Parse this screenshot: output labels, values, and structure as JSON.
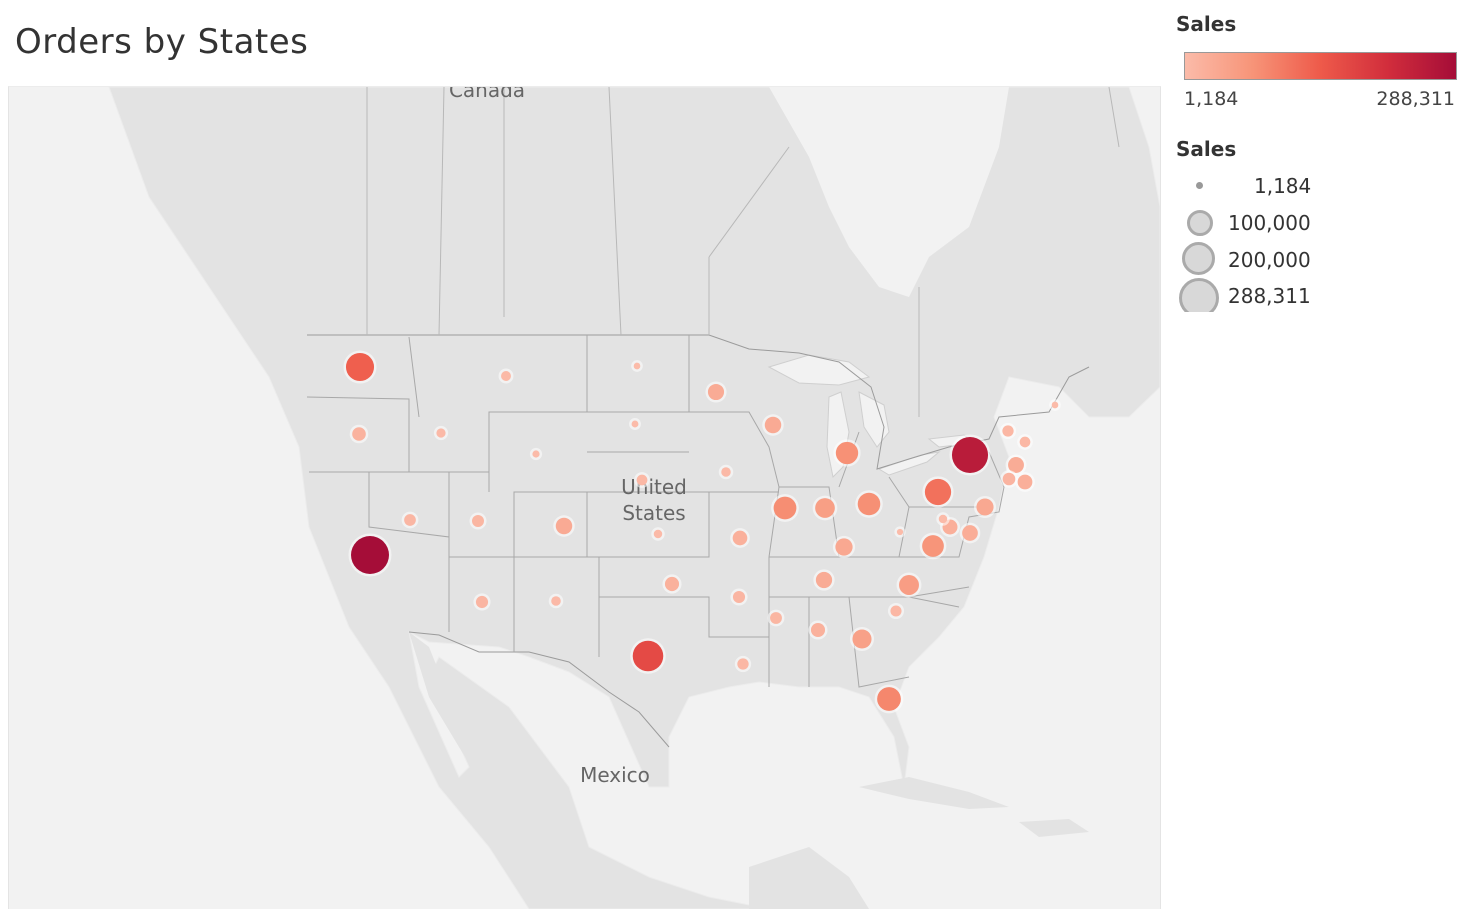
{
  "title": "Orders by States",
  "colors": {
    "land": "#e3e3e3",
    "water": "#f2f2f2",
    "border": "#9b9b9b",
    "mark_low": "#fbbba9",
    "mark_high": "#a50d38"
  },
  "legend": {
    "color": {
      "title": "Sales",
      "min_label": "1,184",
      "max_label": "288,311"
    },
    "size": {
      "title": "Sales",
      "items": [
        {
          "label": "1,184",
          "value": 1184
        },
        {
          "label": "100,000",
          "value": 100000
        },
        {
          "label": "200,000",
          "value": 200000
        },
        {
          "label": "288,311",
          "value": 288311
        }
      ]
    }
  },
  "map": {
    "labels": {
      "canada": "Canada",
      "united_states_line1": "United",
      "united_states_line2": "States",
      "mexico": "Mexico"
    },
    "sales_min": 1184,
    "sales_max": 288311,
    "states": [
      {
        "state": "WA",
        "sales": 138000
      },
      {
        "state": "OR",
        "sales": 17400
      },
      {
        "state": "CA",
        "sales": 288311
      },
      {
        "state": "NV",
        "sales": 10300
      },
      {
        "state": "ID",
        "sales": 4100
      },
      {
        "state": "MT",
        "sales": 5500
      },
      {
        "state": "WY",
        "sales": 1600
      },
      {
        "state": "UT",
        "sales": 11200
      },
      {
        "state": "CO",
        "sales": 32100
      },
      {
        "state": "AZ",
        "sales": 11800
      },
      {
        "state": "NM",
        "sales": 4800
      },
      {
        "state": "ND",
        "sales": 1300
      },
      {
        "state": "SD",
        "sales": 1400
      },
      {
        "state": "NE",
        "sales": 7500
      },
      {
        "state": "KS",
        "sales": 2900
      },
      {
        "state": "OK",
        "sales": 19700
      },
      {
        "state": "TX",
        "sales": 170000
      },
      {
        "state": "MN",
        "sales": 29900
      },
      {
        "state": "IA",
        "sales": 4600
      },
      {
        "state": "MO",
        "sales": 22200
      },
      {
        "state": "AR",
        "sales": 11700
      },
      {
        "state": "LA",
        "sales": 9200
      },
      {
        "state": "WI",
        "sales": 32100
      },
      {
        "state": "IL",
        "sales": 80200
      },
      {
        "state": "MI",
        "sales": 76300
      },
      {
        "state": "IN",
        "sales": 53600
      },
      {
        "state": "OH",
        "sales": 78300
      },
      {
        "state": "KY",
        "sales": 36600
      },
      {
        "state": "TN",
        "sales": 30700
      },
      {
        "state": "MS",
        "sales": 10800
      },
      {
        "state": "AL",
        "sales": 19500
      },
      {
        "state": "GA",
        "sales": 49100
      },
      {
        "state": "FL",
        "sales": 89500
      },
      {
        "state": "SC",
        "sales": 8500
      },
      {
        "state": "NC",
        "sales": 55600
      },
      {
        "state": "VA",
        "sales": 70600
      },
      {
        "state": "WV",
        "sales": 1200
      },
      {
        "state": "MD",
        "sales": 23700
      },
      {
        "state": "DE",
        "sales": 27500
      },
      {
        "state": "PA",
        "sales": 116500
      },
      {
        "state": "NY",
        "sales": 255000
      },
      {
        "state": "NJ",
        "sales": 35800
      },
      {
        "state": "CT",
        "sales": 13400
      },
      {
        "state": "RI",
        "sales": 22600
      },
      {
        "state": "MA",
        "sales": 28600
      },
      {
        "state": "VT",
        "sales": 9000
      },
      {
        "state": "NH",
        "sales": 7300
      },
      {
        "state": "ME",
        "sales": 1300
      },
      {
        "state": "DC",
        "sales": 2900
      }
    ]
  }
}
